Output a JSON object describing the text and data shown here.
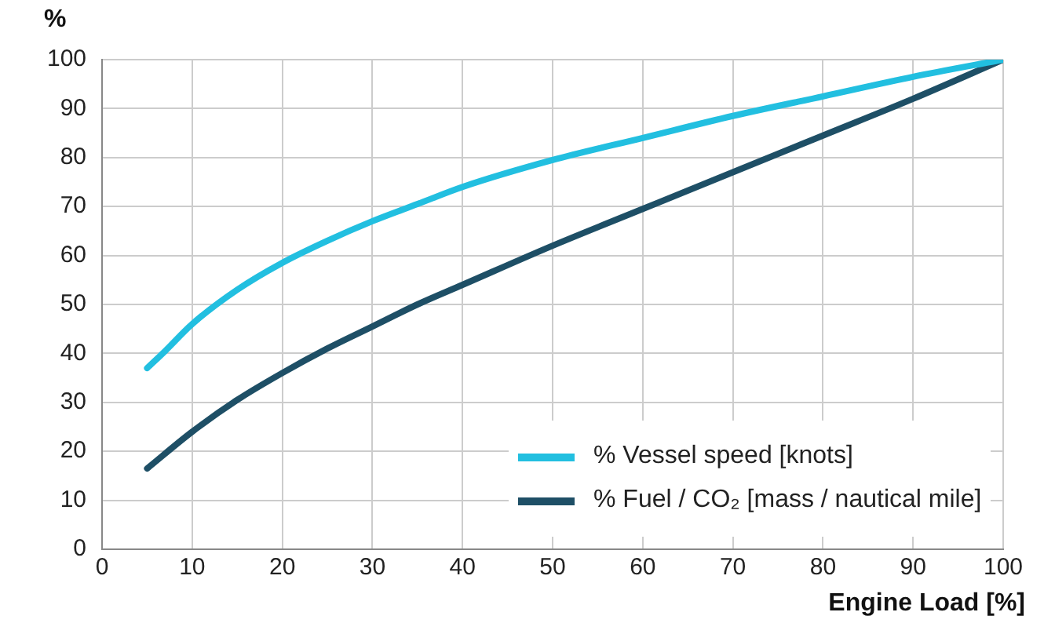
{
  "chart_data": {
    "type": "line",
    "xlabel": "Engine Load [%]",
    "ylabel": "%",
    "series": [
      {
        "name": "% Vessel speed [knots]",
        "color": "#22bfe0",
        "x": [
          5,
          7,
          10,
          15,
          20,
          25,
          30,
          35,
          40,
          50,
          60,
          70,
          80,
          90,
          100
        ],
        "values": [
          37,
          40.5,
          46,
          53,
          58.5,
          63,
          67,
          70.5,
          74,
          79.5,
          84,
          88.5,
          92.5,
          96.5,
          100
        ]
      },
      {
        "name": "% Fuel / CO₂ [mass / nautical mile]",
        "color": "#1e4f66",
        "x": [
          5,
          10,
          15,
          20,
          25,
          30,
          35,
          40,
          50,
          60,
          70,
          80,
          90,
          100
        ],
        "values": [
          16.5,
          24,
          30.5,
          36,
          41,
          45.5,
          50,
          54,
          62,
          69.5,
          77,
          84.5,
          92,
          100
        ]
      }
    ],
    "xlim": [
      0,
      100
    ],
    "xticks": [
      0,
      10,
      20,
      30,
      40,
      50,
      60,
      70,
      80,
      90,
      100
    ],
    "ylim": [
      0,
      100
    ],
    "yticks": [
      0,
      10,
      20,
      30,
      40,
      50,
      60,
      70,
      80,
      90,
      100
    ],
    "grid": true,
    "legend": "bottom right",
    "marker": "none",
    "line_style": "solid"
  }
}
